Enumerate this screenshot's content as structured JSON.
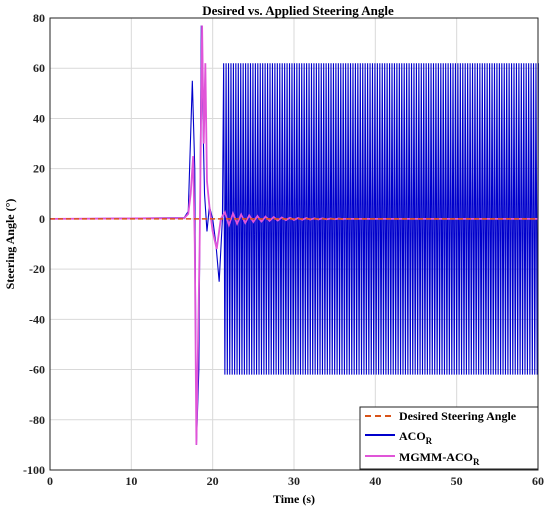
{
  "chart_data": {
    "type": "line",
    "title": "Desired vs. Applied Steering Angle",
    "xlabel": "Time (s)",
    "ylabel": "Steering Angle (°)",
    "xlim": [
      0,
      60
    ],
    "ylim": [
      -100,
      80
    ],
    "xticks": [
      0,
      10,
      20,
      30,
      40,
      50,
      60
    ],
    "yticks": [
      -100,
      -80,
      -60,
      -40,
      -20,
      0,
      20,
      40,
      60,
      80
    ],
    "grid": true,
    "legend_position": "bottom-right",
    "series": [
      {
        "name": "Desired Steering Angle",
        "style": "dashed",
        "color": "#d95319",
        "x": [
          0,
          60
        ],
        "y": [
          0,
          0
        ]
      },
      {
        "name_main": "ACO",
        "name_sub": "R",
        "style": "solid",
        "color": "#0000cc",
        "x": [
          0,
          16.5,
          17.0,
          17.5,
          17.8,
          18.0,
          18.3,
          18.6,
          18.8,
          19.0,
          19.3,
          19.6,
          20.0,
          20.4,
          20.8,
          21.2
        ],
        "y": [
          0,
          0.5,
          3,
          55,
          20,
          -90,
          -60,
          77,
          40,
          10,
          -5,
          5,
          0,
          -10,
          -25,
          0
        ],
        "oscillation": {
          "t_start": 21.2,
          "t_end": 60,
          "amplitude": 62,
          "period": 0.3
        }
      },
      {
        "name_main": "MGMM-ACO",
        "name_sub": "R",
        "style": "solid",
        "color": "#e055d8",
        "x": [
          0,
          16.5,
          17.0,
          17.3,
          17.6,
          17.8,
          18.0,
          18.4,
          18.7,
          18.9,
          19.1,
          19.3,
          19.6,
          20.0,
          20.5,
          21.0
        ],
        "y": [
          0,
          0.3,
          2,
          10,
          25,
          -10,
          -90,
          -10,
          77,
          30,
          62,
          15,
          5,
          -5,
          -12,
          0
        ],
        "oscillation": {
          "t_start": 21.0,
          "t_end": 36,
          "amplitude": 3,
          "period": 1.0,
          "decay": 0.22
        }
      }
    ]
  },
  "colors": {
    "grid": "#d9d9d9",
    "axis": "#222222"
  }
}
